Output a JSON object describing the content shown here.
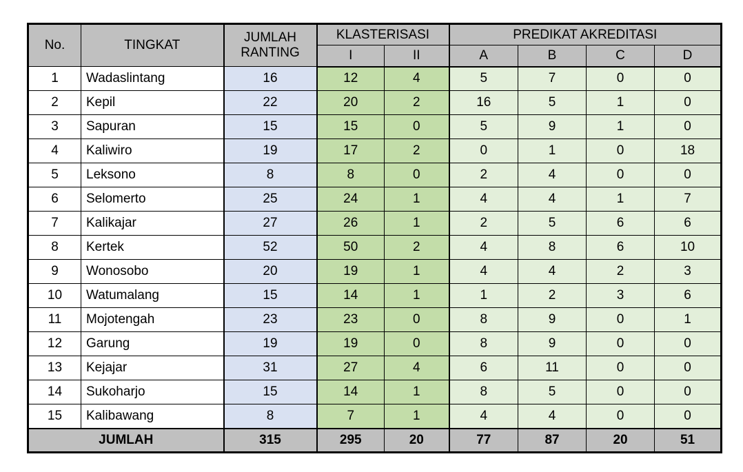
{
  "table": {
    "header": {
      "no": "No.",
      "tingkat": "TINGKAT",
      "jumlah_ranting": "JUMLAH RANTING",
      "klasterisasi": "KLASTERISASI",
      "klasterisasi_sub": [
        "I",
        "II"
      ],
      "predikat": "PREDIKAT AKREDITASI",
      "predikat_sub": [
        "A",
        "B",
        "C",
        "D"
      ]
    },
    "rows": [
      {
        "no": "1",
        "tingkat": "Wadaslintang",
        "jumlah_ranting": 16,
        "klaster_i": 12,
        "klaster_ii": 4,
        "a": 5,
        "b": 7,
        "c": 0,
        "d": 0
      },
      {
        "no": "2",
        "tingkat": "Kepil",
        "jumlah_ranting": 22,
        "klaster_i": 20,
        "klaster_ii": 2,
        "a": 16,
        "b": 5,
        "c": 1,
        "d": 0
      },
      {
        "no": "3",
        "tingkat": "Sapuran",
        "jumlah_ranting": 15,
        "klaster_i": 15,
        "klaster_ii": 0,
        "a": 5,
        "b": 9,
        "c": 1,
        "d": 0
      },
      {
        "no": "4",
        "tingkat": "Kaliwiro",
        "jumlah_ranting": 19,
        "klaster_i": 17,
        "klaster_ii": 2,
        "a": 0,
        "b": 1,
        "c": 0,
        "d": 18
      },
      {
        "no": "5",
        "tingkat": "Leksono",
        "jumlah_ranting": 8,
        "klaster_i": 8,
        "klaster_ii": 0,
        "a": 2,
        "b": 4,
        "c": 0,
        "d": 0
      },
      {
        "no": "6",
        "tingkat": "Selomerto",
        "jumlah_ranting": 25,
        "klaster_i": 24,
        "klaster_ii": 1,
        "a": 4,
        "b": 4,
        "c": 1,
        "d": 7
      },
      {
        "no": "7",
        "tingkat": "Kalikajar",
        "jumlah_ranting": 27,
        "klaster_i": 26,
        "klaster_ii": 1,
        "a": 2,
        "b": 5,
        "c": 6,
        "d": 6
      },
      {
        "no": "8",
        "tingkat": "Kertek",
        "jumlah_ranting": 52,
        "klaster_i": 50,
        "klaster_ii": 2,
        "a": 4,
        "b": 8,
        "c": 6,
        "d": 10
      },
      {
        "no": "9",
        "tingkat": "Wonosobo",
        "jumlah_ranting": 20,
        "klaster_i": 19,
        "klaster_ii": 1,
        "a": 4,
        "b": 4,
        "c": 2,
        "d": 3
      },
      {
        "no": "10",
        "tingkat": "Watumalang",
        "jumlah_ranting": 15,
        "klaster_i": 14,
        "klaster_ii": 1,
        "a": 1,
        "b": 2,
        "c": 3,
        "d": 6
      },
      {
        "no": "11",
        "tingkat": "Mojotengah",
        "jumlah_ranting": 23,
        "klaster_i": 23,
        "klaster_ii": 0,
        "a": 8,
        "b": 9,
        "c": 0,
        "d": 1
      },
      {
        "no": "12",
        "tingkat": "Garung",
        "jumlah_ranting": 19,
        "klaster_i": 19,
        "klaster_ii": 0,
        "a": 8,
        "b": 9,
        "c": 0,
        "d": 0
      },
      {
        "no": "13",
        "tingkat": "Kejajar",
        "jumlah_ranting": 31,
        "klaster_i": 27,
        "klaster_ii": 4,
        "a": 6,
        "b": 11,
        "c": 0,
        "d": 0
      },
      {
        "no": "14",
        "tingkat": "Sukoharjo",
        "jumlah_ranting": 15,
        "klaster_i": 14,
        "klaster_ii": 1,
        "a": 8,
        "b": 5,
        "c": 0,
        "d": 0
      },
      {
        "no": "15",
        "tingkat": "Kalibawang",
        "jumlah_ranting": 8,
        "klaster_i": 7,
        "klaster_ii": 1,
        "a": 4,
        "b": 4,
        "c": 0,
        "d": 0
      }
    ],
    "total": {
      "label": "JUMLAH",
      "jumlah_ranting": 315,
      "klaster_i": 295,
      "klaster_ii": 20,
      "a": 77,
      "b": 87,
      "c": 20,
      "d": 51
    }
  },
  "colors": {
    "header_bg": "#C0C0C0",
    "ranting_bg": "#D9E1F2",
    "klaster_bg": "#C3DDA9",
    "predikat_bg": "#E3EFDA",
    "total_bg": "#C0C0C0",
    "border": "#000000",
    "page_bg": "#FFFFFF"
  }
}
